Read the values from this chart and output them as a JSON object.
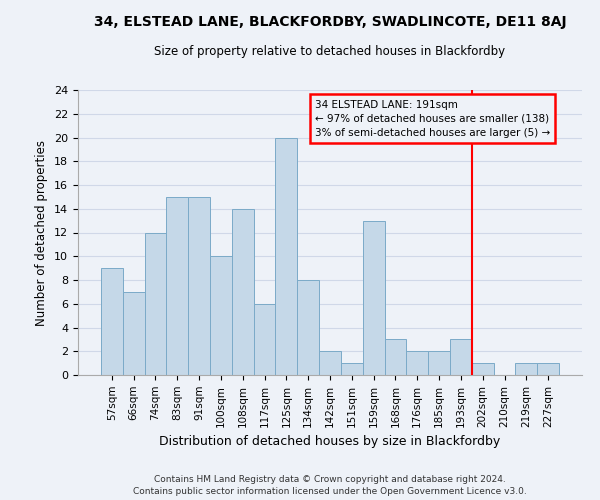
{
  "title": "34, ELSTEAD LANE, BLACKFORDBY, SWADLINCOTE, DE11 8AJ",
  "subtitle": "Size of property relative to detached houses in Blackfordby",
  "xlabel": "Distribution of detached houses by size in Blackfordby",
  "ylabel": "Number of detached properties",
  "footnote1": "Contains HM Land Registry data © Crown copyright and database right 2024.",
  "footnote2": "Contains public sector information licensed under the Open Government Licence v3.0.",
  "categories": [
    "57sqm",
    "66sqm",
    "74sqm",
    "83sqm",
    "91sqm",
    "100sqm",
    "108sqm",
    "117sqm",
    "125sqm",
    "134sqm",
    "142sqm",
    "151sqm",
    "159sqm",
    "168sqm",
    "176sqm",
    "185sqm",
    "193sqm",
    "202sqm",
    "210sqm",
    "219sqm",
    "227sqm"
  ],
  "values": [
    9,
    7,
    12,
    15,
    15,
    10,
    14,
    6,
    20,
    8,
    2,
    1,
    13,
    3,
    2,
    2,
    3,
    1,
    0,
    1,
    1
  ],
  "bar_color": "#c5d8e8",
  "bar_edgecolor": "#7baac8",
  "grid_color": "#d0d8e8",
  "background_color": "#eef2f8",
  "vline_x": 16.5,
  "vline_color": "red",
  "annotation_title": "34 ELSTEAD LANE: 191sqm",
  "annotation_line1": "← 97% of detached houses are smaller (138)",
  "annotation_line2": "3% of semi-detached houses are larger (5) →",
  "annotation_box_color": "red",
  "ylim": [
    0,
    24
  ],
  "yticks": [
    0,
    2,
    4,
    6,
    8,
    10,
    12,
    14,
    16,
    18,
    20,
    22,
    24
  ]
}
